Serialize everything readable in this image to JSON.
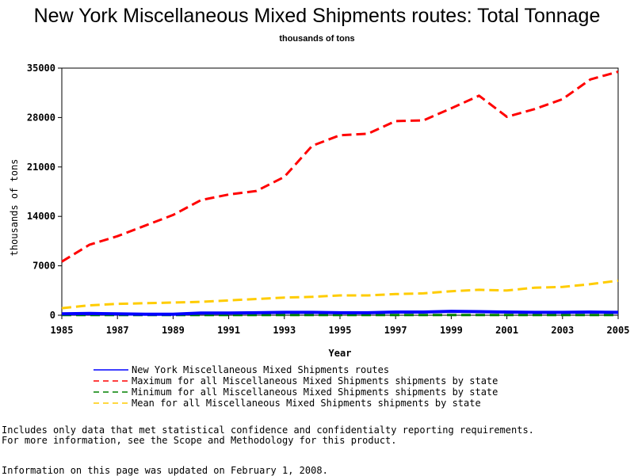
{
  "chart_data": {
    "type": "line",
    "title": "New York Miscellaneous Mixed Shipments routes: Total Tonnage",
    "subtitle": "thousands of tons",
    "xlabel": "Year",
    "ylabel": "thousands of tons",
    "x": [
      1985,
      1986,
      1987,
      1988,
      1989,
      1990,
      1991,
      1992,
      1993,
      1994,
      1995,
      1996,
      1997,
      1998,
      1999,
      2000,
      2001,
      2002,
      2003,
      2004,
      2005
    ],
    "xticks": [
      "1985",
      "1987",
      "1989",
      "1991",
      "1993",
      "1995",
      "1997",
      "1999",
      "2001",
      "2003",
      "2005"
    ],
    "yticks": [
      "0",
      "7000",
      "14000",
      "21000",
      "28000",
      "35000"
    ],
    "xlim": [
      1985,
      2005
    ],
    "ylim": [
      0,
      35000
    ],
    "legend_position": "bottom",
    "series": [
      {
        "name": "New York Miscellaneous Mixed Shipments routes",
        "color": "#0000ff",
        "dash": "solid",
        "width": 4,
        "values": [
          200,
          250,
          200,
          150,
          150,
          300,
          300,
          350,
          400,
          400,
          350,
          350,
          450,
          450,
          550,
          500,
          450,
          400,
          400,
          450,
          400
        ]
      },
      {
        "name": "Maximum for all Miscellaneous Mixed Shipments shipments by state",
        "color": "#ff0000",
        "dash": "dashed",
        "width": 3,
        "values": [
          7600,
          10000,
          11200,
          12700,
          14200,
          16300,
          17100,
          17600,
          19600,
          24000,
          25500,
          25700,
          27500,
          27600,
          29300,
          31100,
          28100,
          29200,
          30600,
          33400,
          34500
        ]
      },
      {
        "name": "Minimum for all Miscellaneous Mixed Shipments shipments by state",
        "color": "#008000",
        "dash": "dashed",
        "width": 3,
        "values": [
          20,
          20,
          20,
          20,
          20,
          20,
          20,
          20,
          20,
          20,
          20,
          20,
          20,
          20,
          20,
          20,
          20,
          20,
          20,
          20,
          20
        ]
      },
      {
        "name": "Mean for all Miscellaneous Mixed Shipments shipments by state",
        "color": "#ffcc00",
        "dash": "dashed",
        "width": 3,
        "values": [
          1000,
          1400,
          1600,
          1700,
          1800,
          1900,
          2100,
          2300,
          2500,
          2600,
          2800,
          2800,
          3000,
          3100,
          3400,
          3600,
          3500,
          3900,
          4000,
          4400,
          4900
        ]
      }
    ]
  },
  "footnotes": {
    "line1": "Includes only data that met statistical confidence and confidentialty reporting requirements.",
    "line2": "For more information, see the Scope and Methodology for this product.",
    "line3": "Information on this page was updated on February 1, 2008."
  }
}
